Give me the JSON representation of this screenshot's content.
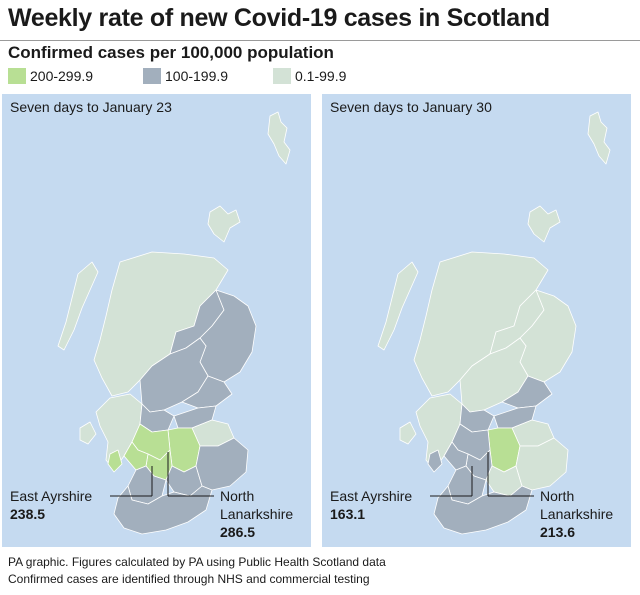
{
  "title": "Weekly rate of new Covid-19 cases in Scotland",
  "subtitle": "Confirmed cases per 100,000 population",
  "legend": [
    {
      "label": "200-299.9",
      "color": "#b8df94"
    },
    {
      "label": "100-199.9",
      "color": "#a2afbd"
    },
    {
      "label": "0.1-99.9",
      "color": "#d3e2d6"
    }
  ],
  "colors": {
    "water": "#c5daf0",
    "high": "#b8df94",
    "mid": "#a2afbd",
    "low": "#d3e2d6",
    "border": "#ffffff"
  },
  "panels": [
    {
      "title": "Seven days to January 23",
      "east_ayrshire": {
        "name": "East Ayrshire",
        "value": "238.5",
        "band": "200-299.9"
      },
      "north_lanarkshire": {
        "name": "North Lanarkshire",
        "name_line1": "North",
        "name_line2": "Lanarkshire",
        "value": "286.5",
        "band": "200-299.9"
      }
    },
    {
      "title": "Seven days to January 30",
      "east_ayrshire": {
        "name": "East Ayrshire",
        "value": "163.1",
        "band": "100-199.9"
      },
      "north_lanarkshire": {
        "name": "North Lanarkshire",
        "name_line1": "North",
        "name_line2": "Lanarkshire",
        "value": "213.6",
        "band": "200-299.9"
      }
    }
  ],
  "footer": {
    "line1": "PA graphic. Figures calculated by PA using Public Health Scotland data",
    "line2": "Confirmed cases are identified through NHS and commercial testing"
  }
}
